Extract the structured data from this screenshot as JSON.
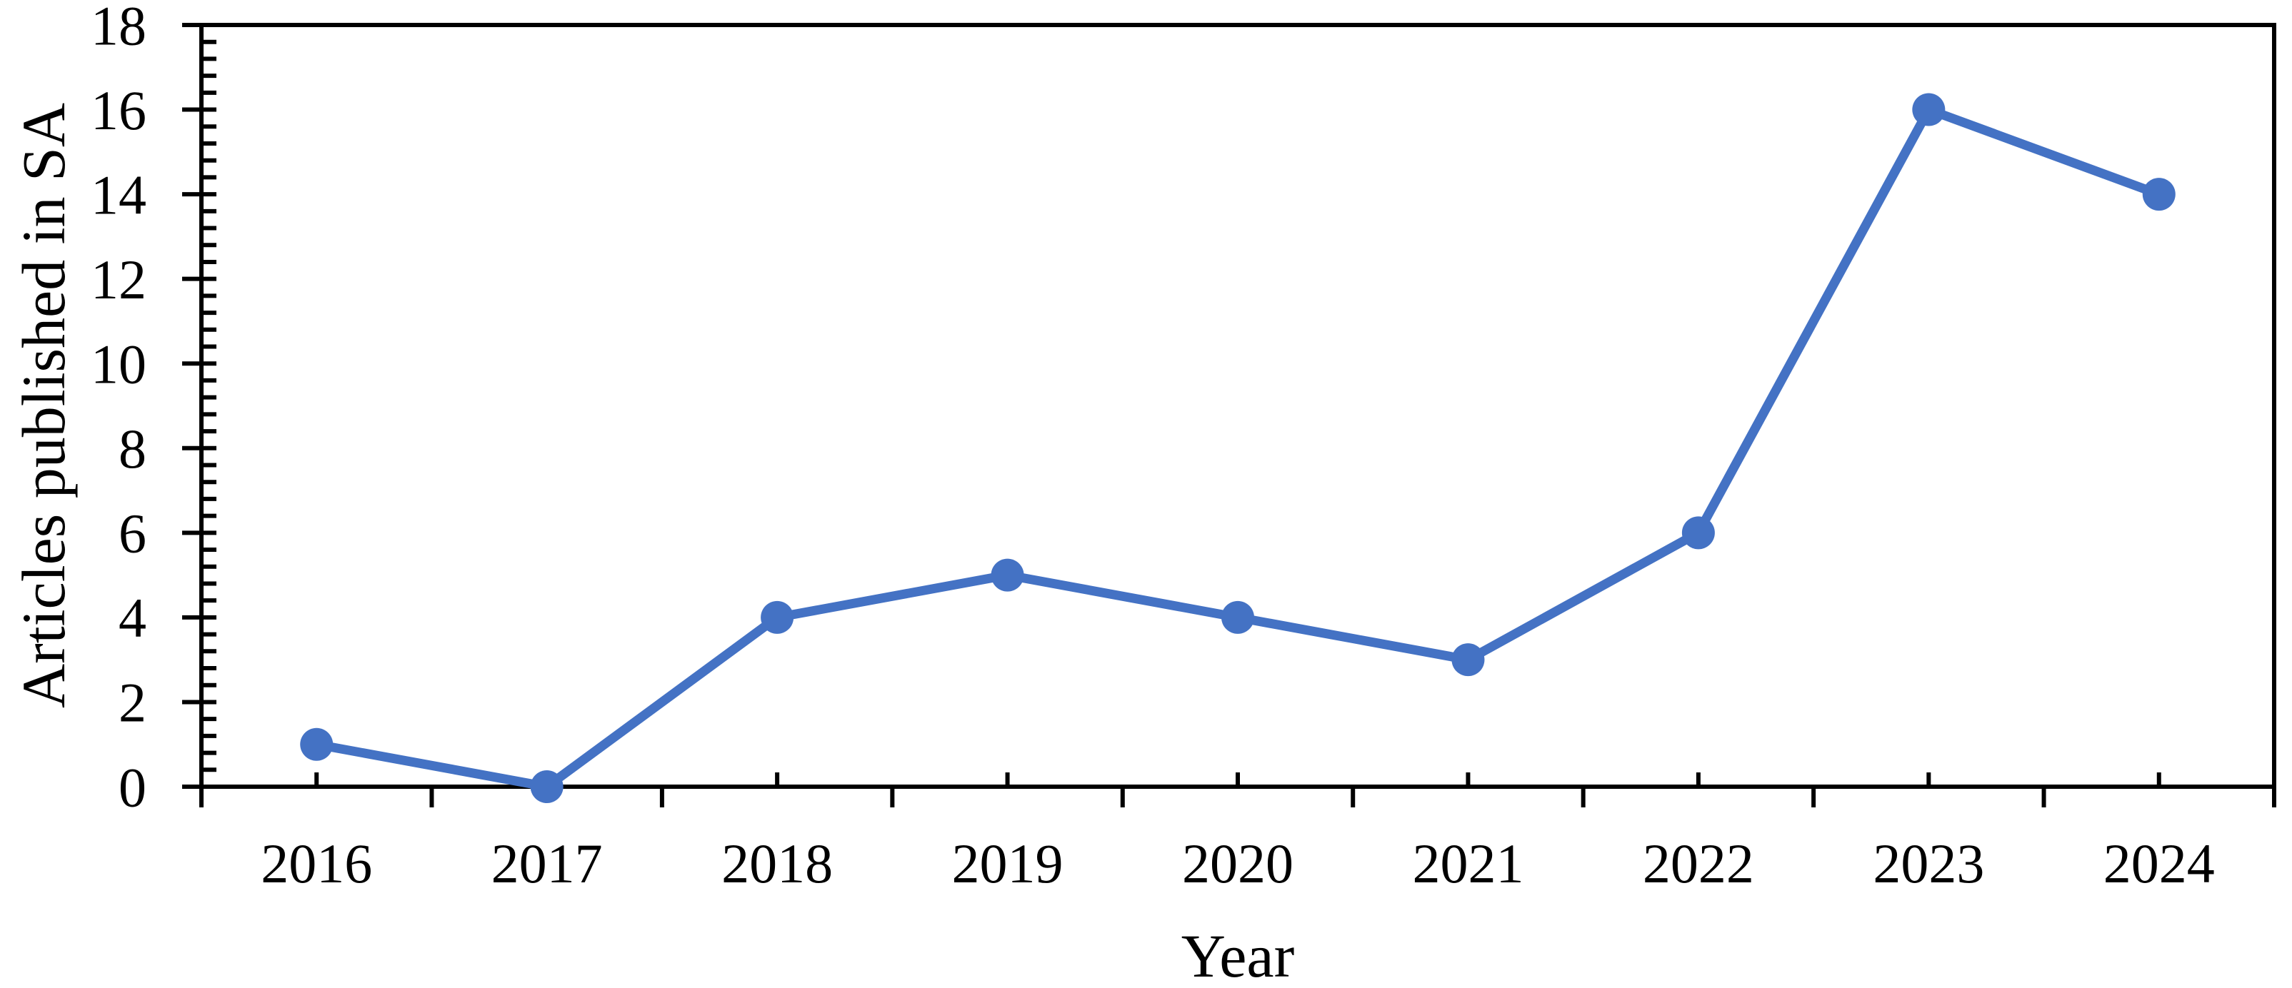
{
  "chart_data": {
    "type": "line",
    "categories": [
      "2016",
      "2017",
      "2018",
      "2019",
      "2020",
      "2021",
      "2022",
      "2023",
      "2024"
    ],
    "series": [
      {
        "name": "Articles published in SA",
        "values": [
          1,
          0,
          4,
          5,
          4,
          3,
          6,
          16,
          14
        ]
      }
    ],
    "xlabel": "Year",
    "ylabel": "Articles published in SA",
    "ylim": [
      0,
      18
    ],
    "y_major_unit": 2,
    "y_minor_unit": 0.4,
    "y_tick_labels": [
      "0",
      "2",
      "4",
      "6",
      "8",
      "10",
      "12",
      "14",
      "16",
      "18"
    ],
    "grid": false,
    "legend": false,
    "marker": "circle",
    "line_color": "#4472C4",
    "axis_color": "#000000",
    "background_color": "#FFFFFF"
  }
}
